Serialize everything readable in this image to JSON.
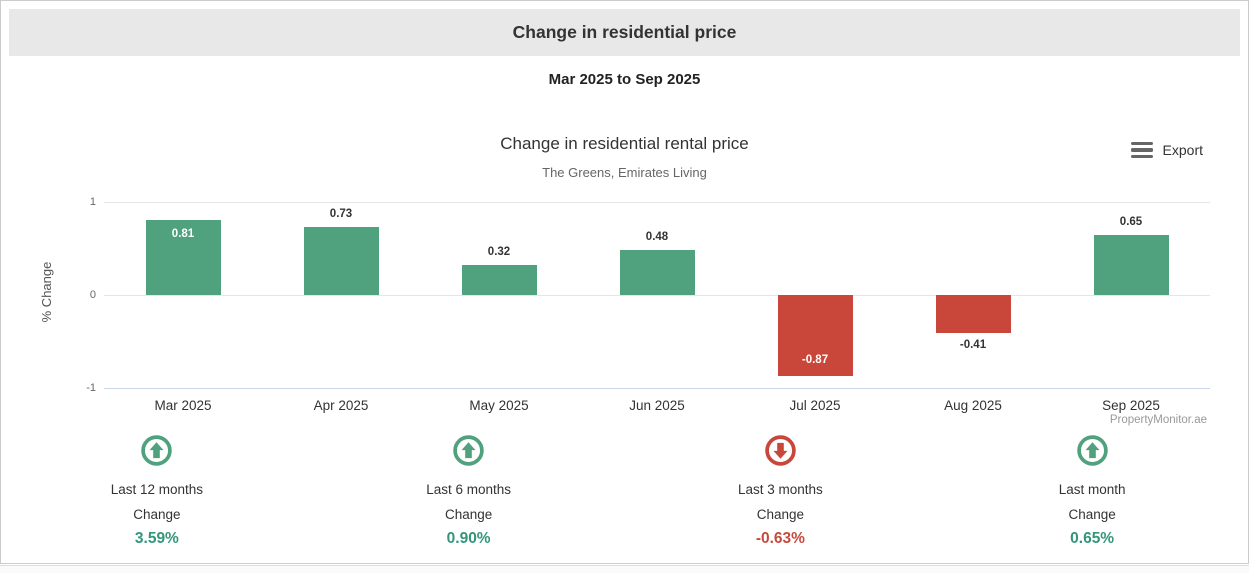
{
  "header": {
    "title": "Change in residential price"
  },
  "subheader": {
    "date_range": "Mar 2025 to Sep 2025"
  },
  "toolbar": {
    "export_label": "Export",
    "export_icon": "hamburger-menu"
  },
  "colors": {
    "positive": "#50a17e",
    "negative": "#c9473a",
    "positive_text": "#33967b",
    "negative_text": "#c64a3c",
    "grid": "#e6e6e6",
    "axis_line": "#ccd6eb",
    "header_bg": "#e8e8e8"
  },
  "chart_data": {
    "type": "bar",
    "title": "Change in residential rental price",
    "subtitle": "The Greens, Emirates Living",
    "xlabel": "",
    "ylabel": "% Change",
    "categories": [
      "Mar 2025",
      "Apr 2025",
      "May 2025",
      "Jun 2025",
      "Jul 2025",
      "Aug 2025",
      "Sep 2025"
    ],
    "values": [
      0.81,
      0.73,
      0.32,
      0.48,
      -0.87,
      -0.41,
      0.65
    ],
    "value_labels": [
      "0.81",
      "0.73",
      "0.32",
      "0.48",
      "-0.87",
      "-0.41",
      "0.65"
    ],
    "labels_inside": [
      true,
      false,
      false,
      false,
      true,
      false,
      false
    ],
    "ylim": [
      -1,
      1
    ],
    "yticks": [
      "1",
      "0",
      "-1"
    ],
    "grid": true,
    "legend": "none",
    "watermark": "PropertyMonitor.ae"
  },
  "stats": [
    {
      "label": "Last 12 months",
      "sublabel": "Change",
      "value": "3.59%",
      "direction": "up"
    },
    {
      "label": "Last 6 months",
      "sublabel": "Change",
      "value": "0.90%",
      "direction": "up"
    },
    {
      "label": "Last 3 months",
      "sublabel": "Change",
      "value": "-0.63%",
      "direction": "down"
    },
    {
      "label": "Last month",
      "sublabel": "Change",
      "value": "0.65%",
      "direction": "up"
    }
  ]
}
